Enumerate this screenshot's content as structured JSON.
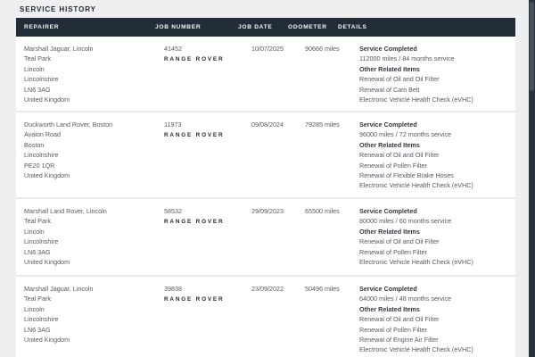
{
  "page": {
    "title": "SERVICE HISTORY"
  },
  "colors": {
    "header_bg": "#222d38",
    "header_text": "#f4f6f7",
    "page_bg": "#edeff1",
    "row_bg": "#ffffff",
    "body_text": "#54595f",
    "bold_text": "#33383e"
  },
  "table": {
    "brand": "RANGE ROVER",
    "columns": [
      "REPAIRER",
      "JOB NUMBER",
      "JOB DATE",
      "ODOMETER",
      "DETAILS"
    ],
    "rows": [
      {
        "repairer": [
          "Marshall Jaguar, Lincoln",
          "Teal Park",
          "Lincoln",
          "Lincolnshire",
          "LN6 3AG",
          "United Kingdom"
        ],
        "job_number": "41452",
        "job_date": "10/07/2025",
        "odometer": "90666 miles",
        "details": {
          "status": "Service Completed",
          "interval": "112000 miles / 84 months service",
          "related_heading": "Other Related Items",
          "items": [
            "Renewal of Oil and Oil Filter",
            "Renewal of Cam Belt",
            "Electronic Vehicle Health Check (eVHC)"
          ]
        }
      },
      {
        "repairer": [
          "Duckworth Land Rover, Boston",
          "Avalon Road",
          "Boston",
          "Lincolnshire",
          "PE20 1QR",
          "United Kingdom"
        ],
        "job_number": "11973",
        "job_date": "09/08/2024",
        "odometer": "79285 miles",
        "details": {
          "status": "Service Completed",
          "interval": "96000 miles / 72 months service",
          "related_heading": "Other Related Items",
          "items": [
            "Renewal of Oil and Oil Filter",
            "Renewal of Pollen Filter",
            "Renewal of Flexible Brake Hoses",
            "Electronic Vehicle Health Check (eVHC)"
          ]
        }
      },
      {
        "repairer": [
          "Marshall Land Rover, Lincoln",
          "Teal Park",
          "Lincoln",
          "Lincolnshire",
          "LN6 3AG",
          "United Kingdom"
        ],
        "job_number": "58532",
        "job_date": "29/09/2023",
        "odometer": "65500 miles",
        "details": {
          "status": "Service Completed",
          "interval": "80000 miles / 60 months service",
          "related_heading": "Other Related Items",
          "items": [
            "Renewal of Oil and Oil Filter",
            "Renewal of Pollen Filter",
            "Electronic Vehicle Health Check (eVHC)"
          ]
        }
      },
      {
        "repairer": [
          "Marshall Jaguar, Lincoln",
          "Teal Park",
          "Lincoln",
          "Lincolnshire",
          "LN6 3AG",
          "United Kingdom"
        ],
        "job_number": "39838",
        "job_date": "23/09/2022",
        "odometer": "50496 miles",
        "details": {
          "status": "Service Completed",
          "interval": "64000 miles / 48 months service",
          "related_heading": "Other Related Items",
          "items": [
            "Renewal of Oil and Oil Filter",
            "Renewal of Pollen Filter",
            "Renewal of Engine Air Filter",
            "Electronic Vehicle Health Check (eVHC)"
          ]
        }
      }
    ]
  }
}
